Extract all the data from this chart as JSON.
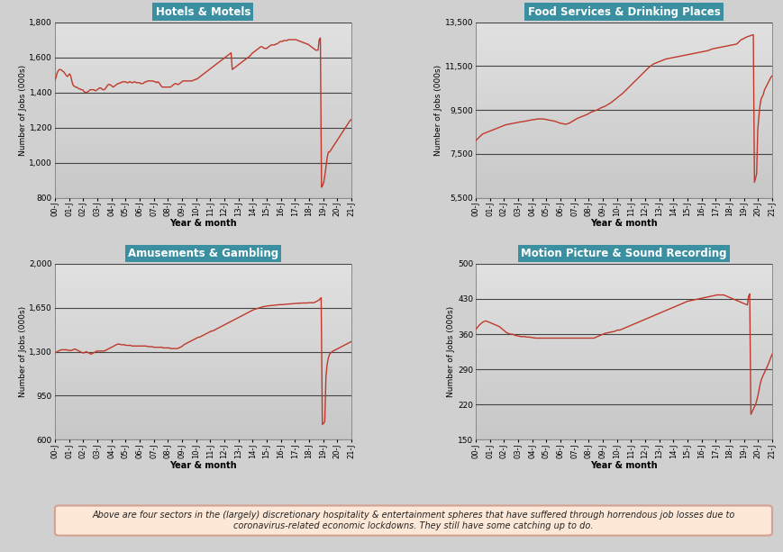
{
  "title_color_bg": "#3a8fa0",
  "title_color_text": "white",
  "line_color": "#c0392b",
  "outer_bg": "#d0d0d0",
  "plot_bg_top": "#e8e8e8",
  "plot_bg_bottom": "#c8c8c8",
  "grid_color": "#444444",
  "footer_bg": "#fde8d8",
  "footer_border": "#d4a090",
  "footer_text": "Above are four sectors in the (largely) discretionary hospitality & entertainment spheres that have suffered through horrendous job losses due to\ncoronavirus-related economic lockdowns. They still have some catching up to do.",
  "n_months": 258,
  "panels": [
    {
      "title": "Hotels & Motels",
      "ylabel": "Number of Jobs (000s)",
      "xlabel": "Year & month",
      "yticks": [
        800,
        1000,
        1200,
        1400,
        1600,
        1800
      ],
      "ylim": [
        800,
        1800
      ],
      "xtick_labels": [
        "00-J",
        "01-J",
        "02-J",
        "03-J",
        "04-J",
        "05-J",
        "06-J",
        "07-J",
        "08-J",
        "09-J",
        "10-J",
        "11-J",
        "12-J",
        "13-J",
        "14-J",
        "15-J",
        "16-J",
        "17-J",
        "18-J",
        "19-J",
        "20-J",
        "21-J"
      ],
      "data_monthly": [
        1470,
        1485,
        1510,
        1525,
        1530,
        1530,
        1525,
        1520,
        1515,
        1505,
        1495,
        1490,
        1500,
        1505,
        1490,
        1460,
        1440,
        1435,
        1430,
        1430,
        1425,
        1420,
        1420,
        1415,
        1415,
        1410,
        1400,
        1400,
        1400,
        1405,
        1410,
        1415,
        1415,
        1415,
        1415,
        1410,
        1410,
        1415,
        1420,
        1425,
        1425,
        1420,
        1415,
        1415,
        1420,
        1430,
        1440,
        1445,
        1445,
        1440,
        1435,
        1430,
        1435,
        1440,
        1445,
        1450,
        1450,
        1455,
        1455,
        1460,
        1460,
        1460,
        1460,
        1455,
        1455,
        1460,
        1460,
        1455,
        1455,
        1460,
        1460,
        1455,
        1455,
        1455,
        1455,
        1450,
        1450,
        1450,
        1455,
        1460,
        1460,
        1465,
        1465,
        1465,
        1465,
        1465,
        1465,
        1460,
        1460,
        1455,
        1460,
        1455,
        1445,
        1435,
        1430,
        1430,
        1430,
        1430,
        1430,
        1430,
        1430,
        1430,
        1435,
        1440,
        1445,
        1450,
        1450,
        1445,
        1445,
        1450,
        1455,
        1460,
        1465,
        1465,
        1465,
        1465,
        1465,
        1465,
        1465,
        1465,
        1465,
        1470,
        1470,
        1475,
        1475,
        1480,
        1485,
        1490,
        1495,
        1500,
        1505,
        1510,
        1515,
        1520,
        1525,
        1530,
        1535,
        1540,
        1545,
        1550,
        1555,
        1560,
        1565,
        1570,
        1575,
        1580,
        1585,
        1590,
        1595,
        1600,
        1605,
        1610,
        1615,
        1620,
        1625,
        1530,
        1535,
        1540,
        1545,
        1550,
        1555,
        1560,
        1565,
        1570,
        1575,
        1580,
        1585,
        1590,
        1595,
        1600,
        1605,
        1610,
        1620,
        1625,
        1630,
        1635,
        1640,
        1645,
        1650,
        1655,
        1660,
        1660,
        1655,
        1650,
        1650,
        1650,
        1655,
        1660,
        1665,
        1670,
        1670,
        1670,
        1670,
        1675,
        1675,
        1680,
        1685,
        1690,
        1690,
        1690,
        1695,
        1695,
        1695,
        1695,
        1700,
        1700,
        1700,
        1700,
        1700,
        1700,
        1700,
        1700,
        1695,
        1695,
        1690,
        1690,
        1685,
        1685,
        1680,
        1680,
        1675,
        1675,
        1670,
        1665,
        1660,
        1655,
        1650,
        1645,
        1640,
        1640,
        1640,
        1700,
        1710,
        860,
        870,
        890,
        930,
        980,
        1030,
        1060,
        1060,
        1070,
        1080,
        1090,
        1100,
        1110,
        1120,
        1130,
        1140,
        1150,
        1160,
        1170,
        1180,
        1190,
        1200,
        1210,
        1220,
        1230,
        1240,
        1245
      ]
    },
    {
      "title": "Food Services & Drinking Places",
      "ylabel": "Number of Jobs (000s)",
      "xlabel": "Year & month",
      "yticks": [
        5500,
        7500,
        9500,
        11500,
        13500
      ],
      "ylim": [
        5500,
        13500
      ],
      "xtick_labels": [
        "00-J",
        "01-J",
        "02-J",
        "03-J",
        "04-J",
        "05-J",
        "06-J",
        "07-J",
        "08-J",
        "09-J",
        "10-J",
        "11-J",
        "12-J",
        "13-J",
        "14-J",
        "15-J",
        "16-J",
        "17-J",
        "18-J",
        "19-J",
        "20-J",
        "21-J"
      ],
      "data_monthly": [
        8100,
        8150,
        8200,
        8250,
        8300,
        8350,
        8400,
        8420,
        8440,
        8460,
        8480,
        8500,
        8520,
        8540,
        8560,
        8580,
        8600,
        8620,
        8640,
        8660,
        8680,
        8700,
        8720,
        8740,
        8760,
        8780,
        8800,
        8820,
        8830,
        8840,
        8850,
        8860,
        8870,
        8880,
        8890,
        8900,
        8910,
        8920,
        8930,
        8940,
        8950,
        8960,
        8960,
        8970,
        8980,
        8990,
        9000,
        9010,
        9020,
        9030,
        9040,
        9050,
        9060,
        9060,
        9070,
        9080,
        9090,
        9090,
        9090,
        9090,
        9090,
        9090,
        9080,
        9070,
        9060,
        9050,
        9040,
        9030,
        9020,
        9010,
        9000,
        8990,
        8980,
        8960,
        8940,
        8920,
        8900,
        8890,
        8880,
        8870,
        8860,
        8850,
        8850,
        8870,
        8890,
        8910,
        8940,
        8970,
        9000,
        9030,
        9060,
        9090,
        9120,
        9140,
        9160,
        9180,
        9200,
        9220,
        9240,
        9260,
        9280,
        9300,
        9330,
        9360,
        9390,
        9410,
        9430,
        9450,
        9470,
        9490,
        9510,
        9530,
        9560,
        9590,
        9610,
        9630,
        9650,
        9670,
        9700,
        9730,
        9760,
        9790,
        9820,
        9860,
        9900,
        9940,
        9980,
        10020,
        10060,
        10100,
        10140,
        10180,
        10220,
        10260,
        10310,
        10360,
        10410,
        10460,
        10510,
        10560,
        10610,
        10660,
        10710,
        10760,
        10810,
        10860,
        10910,
        10960,
        11010,
        11060,
        11110,
        11160,
        11210,
        11260,
        11310,
        11360,
        11410,
        11450,
        11490,
        11530,
        11570,
        11600,
        11620,
        11640,
        11660,
        11680,
        11700,
        11720,
        11740,
        11760,
        11780,
        11800,
        11820,
        11830,
        11840,
        11850,
        11860,
        11870,
        11880,
        11890,
        11900,
        11910,
        11920,
        11930,
        11940,
        11950,
        11960,
        11970,
        11980,
        11990,
        12000,
        12010,
        12020,
        12030,
        12040,
        12050,
        12060,
        12070,
        12080,
        12090,
        12100,
        12110,
        12120,
        12130,
        12140,
        12150,
        12160,
        12170,
        12180,
        12190,
        12200,
        12220,
        12240,
        12260,
        12280,
        12290,
        12300,
        12310,
        12320,
        12330,
        12340,
        12350,
        12360,
        12370,
        12380,
        12390,
        12400,
        12410,
        12420,
        12430,
        12440,
        12450,
        12460,
        12470,
        12480,
        12490,
        12500,
        12550,
        12600,
        12650,
        12700,
        12720,
        12740,
        12770,
        12800,
        12820,
        12840,
        12860,
        12870,
        12900,
        12910,
        12920,
        6200,
        6400,
        6600,
        8600,
        9200,
        9700,
        10000,
        10100,
        10200,
        10400,
        10500,
        10600,
        10700,
        10800,
        10900,
        11000,
        11050
      ]
    },
    {
      "title": "Amusements & Gambling",
      "ylabel": "Number of Jobs (000s)",
      "xlabel": "Year & month",
      "yticks": [
        600,
        950,
        1300,
        1650,
        2000
      ],
      "ylim": [
        600,
        2000
      ],
      "xtick_labels": [
        "00-J",
        "01-J",
        "02-J",
        "03-J",
        "04-J",
        "05-J",
        "06-J",
        "07-J",
        "08-J",
        "09-J",
        "10-J",
        "11-J",
        "12-J",
        "13-J",
        "14-J",
        "15-J",
        "16-J",
        "17-J",
        "18-J",
        "19-J",
        "20-J",
        "21-J"
      ],
      "data_monthly": [
        1290,
        1295,
        1300,
        1305,
        1310,
        1315,
        1315,
        1315,
        1315,
        1315,
        1315,
        1310,
        1310,
        1310,
        1310,
        1315,
        1320,
        1320,
        1315,
        1310,
        1305,
        1300,
        1295,
        1290,
        1290,
        1295,
        1300,
        1295,
        1290,
        1285,
        1280,
        1285,
        1290,
        1295,
        1300,
        1305,
        1305,
        1305,
        1305,
        1305,
        1305,
        1305,
        1310,
        1315,
        1320,
        1325,
        1330,
        1335,
        1340,
        1345,
        1350,
        1355,
        1360,
        1360,
        1360,
        1355,
        1355,
        1355,
        1355,
        1350,
        1350,
        1350,
        1350,
        1350,
        1345,
        1345,
        1345,
        1345,
        1345,
        1345,
        1345,
        1345,
        1345,
        1345,
        1345,
        1345,
        1345,
        1340,
        1340,
        1340,
        1340,
        1340,
        1335,
        1335,
        1335,
        1335,
        1335,
        1335,
        1335,
        1335,
        1330,
        1330,
        1330,
        1330,
        1330,
        1330,
        1325,
        1325,
        1325,
        1325,
        1325,
        1325,
        1325,
        1330,
        1335,
        1340,
        1345,
        1355,
        1360,
        1365,
        1370,
        1375,
        1380,
        1385,
        1390,
        1395,
        1400,
        1405,
        1410,
        1415,
        1415,
        1420,
        1425,
        1430,
        1435,
        1440,
        1445,
        1450,
        1455,
        1460,
        1465,
        1465,
        1470,
        1475,
        1480,
        1485,
        1490,
        1495,
        1500,
        1505,
        1510,
        1515,
        1520,
        1525,
        1530,
        1535,
        1540,
        1545,
        1550,
        1555,
        1560,
        1565,
        1570,
        1575,
        1580,
        1585,
        1590,
        1595,
        1600,
        1605,
        1610,
        1615,
        1620,
        1625,
        1630,
        1635,
        1638,
        1641,
        1644,
        1647,
        1650,
        1653,
        1656,
        1659,
        1660,
        1662,
        1664,
        1665,
        1666,
        1667,
        1668,
        1669,
        1670,
        1671,
        1672,
        1673,
        1674,
        1675,
        1675,
        1675,
        1676,
        1677,
        1678,
        1679,
        1680,
        1680,
        1681,
        1682,
        1683,
        1684,
        1685,
        1685,
        1686,
        1686,
        1687,
        1687,
        1688,
        1688,
        1688,
        1688,
        1689,
        1690,
        1690,
        1690,
        1690,
        1690,
        1695,
        1700,
        1705,
        1710,
        1720,
        1730,
        720,
        730,
        740,
        1100,
        1200,
        1250,
        1280,
        1290,
        1300,
        1305,
        1310,
        1315,
        1320,
        1325,
        1330,
        1335,
        1340,
        1345,
        1350,
        1355,
        1360,
        1365,
        1370,
        1375,
        1380
      ]
    },
    {
      "title": "Motion Picture & Sound Recording",
      "ylabel": "Number of Jobs (000s)",
      "xlabel": "Year & month",
      "yticks": [
        150,
        220,
        290,
        360,
        430,
        500
      ],
      "ylim": [
        150,
        500
      ],
      "xtick_labels": [
        "00-J",
        "01-J",
        "02-J",
        "03-J",
        "04-J",
        "05-J",
        "06-J",
        "07-J",
        "08-J",
        "09-J",
        "10-J",
        "11-J",
        "12-J",
        "13-J",
        "14-J",
        "15-J",
        "16-J",
        "17-J",
        "18-J",
        "19-J",
        "20-J",
        "21-J"
      ],
      "data_monthly": [
        370,
        372,
        375,
        378,
        380,
        382,
        384,
        385,
        386,
        386,
        385,
        384,
        383,
        382,
        381,
        380,
        379,
        378,
        377,
        376,
        375,
        373,
        371,
        369,
        367,
        365,
        363,
        362,
        361,
        360,
        360,
        360,
        359,
        358,
        357,
        357,
        356,
        356,
        355,
        355,
        355,
        355,
        355,
        354,
        354,
        354,
        354,
        353,
        353,
        353,
        352,
        352,
        352,
        352,
        352,
        352,
        352,
        352,
        352,
        352,
        352,
        352,
        352,
        352,
        352,
        352,
        352,
        352,
        352,
        352,
        352,
        352,
        352,
        352,
        352,
        352,
        352,
        352,
        352,
        352,
        352,
        352,
        352,
        352,
        352,
        352,
        352,
        352,
        352,
        352,
        352,
        352,
        352,
        352,
        352,
        352,
        352,
        352,
        352,
        352,
        352,
        353,
        354,
        355,
        356,
        357,
        358,
        359,
        360,
        361,
        362,
        362,
        363,
        363,
        364,
        364,
        365,
        365,
        366,
        367,
        368,
        368,
        368,
        369,
        370,
        371,
        372,
        373,
        374,
        375,
        376,
        377,
        378,
        379,
        380,
        381,
        382,
        383,
        384,
        385,
        386,
        387,
        388,
        389,
        390,
        391,
        392,
        393,
        394,
        395,
        396,
        397,
        398,
        399,
        400,
        401,
        402,
        403,
        404,
        405,
        406,
        407,
        408,
        409,
        410,
        411,
        412,
        413,
        414,
        415,
        416,
        417,
        418,
        419,
        420,
        421,
        422,
        423,
        424,
        425,
        426,
        426,
        427,
        427,
        428,
        428,
        429,
        429,
        430,
        430,
        431,
        431,
        432,
        432,
        433,
        433,
        434,
        434,
        435,
        435,
        436,
        436,
        437,
        437,
        438,
        438,
        438,
        438,
        438,
        438,
        438,
        437,
        436,
        435,
        434,
        433,
        432,
        431,
        430,
        429,
        428,
        427,
        426,
        425,
        424,
        423,
        422,
        421,
        420,
        419,
        418,
        435,
        440,
        200,
        205,
        210,
        215,
        220,
        228,
        238,
        250,
        262,
        270,
        276,
        281,
        286,
        291,
        296,
        302,
        308,
        314,
        320
      ]
    }
  ]
}
